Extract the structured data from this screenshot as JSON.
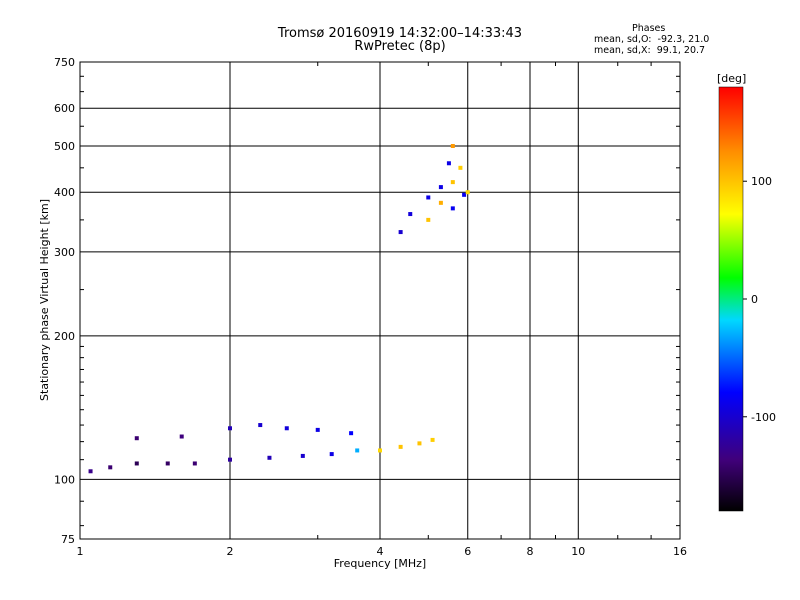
{
  "title": {
    "line1": "Tromsø 20160919 14:32:00–14:33:43",
    "line2": "RwPretec (8p)"
  },
  "phase_info": {
    "heading": "Phases",
    "o_stats": "mean, sd,O:  -92.3, 21.0",
    "x_stats": "mean, sd,X:  99.1, 20.7"
  },
  "colorbar": {
    "unit_label": "[deg]",
    "ticks": [
      100,
      0,
      -100
    ],
    "range": [
      -180,
      180
    ]
  },
  "chart_data": {
    "type": "scatter",
    "xlabel": "Frequency [MHz]",
    "ylabel": "Stationary phase Virtual Height [km]",
    "x_scale": "log",
    "y_scale": "log",
    "xlim": [
      1,
      16
    ],
    "ylim": [
      75,
      750
    ],
    "x_ticks": [
      1,
      2,
      4,
      6,
      8,
      10,
      16
    ],
    "y_ticks": [
      75,
      100,
      200,
      300,
      400,
      500,
      600,
      750
    ],
    "grid": true,
    "color_encoding": "phase [deg]",
    "series": [
      {
        "trace": "E trace",
        "mode": "X",
        "points": [
          [
            1.05,
            104,
            -130
          ],
          [
            1.15,
            106,
            -140
          ],
          [
            1.3,
            108,
            -150
          ],
          [
            1.5,
            108,
            -145
          ],
          [
            1.7,
            108,
            -140
          ],
          [
            2.0,
            110,
            -120
          ],
          [
            2.4,
            111,
            -110
          ],
          [
            2.8,
            112,
            -100
          ],
          [
            3.2,
            113,
            -90
          ],
          [
            3.6,
            115,
            -30
          ],
          [
            4.0,
            115,
            90
          ],
          [
            4.4,
            117,
            100
          ],
          [
            4.8,
            119,
            100
          ],
          [
            5.1,
            121,
            95
          ]
        ]
      },
      {
        "trace": "E trace upper",
        "mode": "O",
        "points": [
          [
            1.3,
            122,
            -140
          ],
          [
            1.6,
            123,
            -135
          ],
          [
            2.0,
            128,
            -110
          ],
          [
            2.3,
            130,
            -100
          ],
          [
            2.6,
            128,
            -95
          ],
          [
            3.0,
            127,
            -90
          ],
          [
            3.5,
            125,
            -80
          ]
        ]
      },
      {
        "trace": "F layer",
        "mode": "X",
        "points": [
          [
            4.4,
            330,
            -100
          ],
          [
            4.6,
            360,
            -95
          ],
          [
            5.0,
            390,
            -90
          ],
          [
            5.3,
            410,
            -90
          ],
          [
            5.6,
            370,
            -85
          ],
          [
            5.9,
            395,
            -85
          ],
          [
            5.5,
            460,
            -90
          ]
        ]
      },
      {
        "trace": "F layer",
        "mode": "O",
        "points": [
          [
            5.0,
            350,
            100
          ],
          [
            5.3,
            380,
            110
          ],
          [
            5.6,
            420,
            100
          ],
          [
            5.8,
            450,
            95
          ],
          [
            6.0,
            400,
            90
          ],
          [
            5.6,
            500,
            120
          ]
        ]
      }
    ]
  }
}
